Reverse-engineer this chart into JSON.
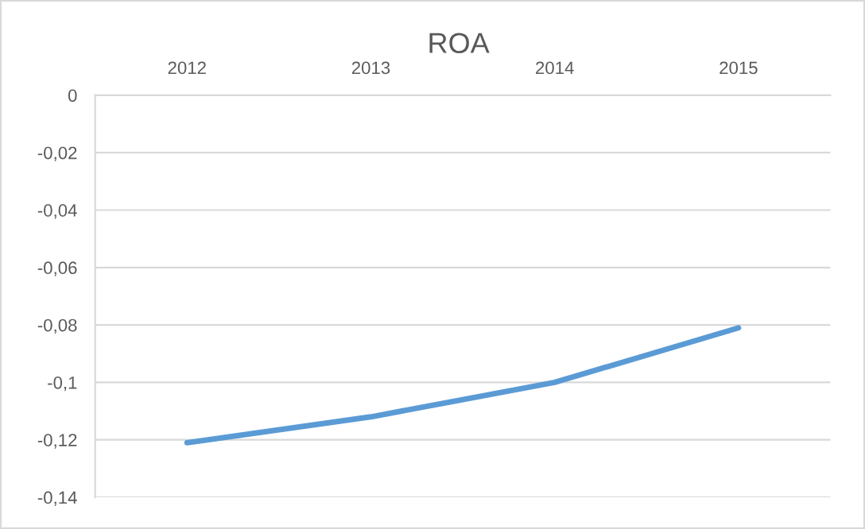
{
  "chart_data": {
    "type": "line",
    "title": "ROA",
    "categories": [
      "2012",
      "2013",
      "2014",
      "2015"
    ],
    "series": [
      {
        "color": "#5b9bd5",
        "values": [
          -0.121,
          -0.112,
          -0.1,
          -0.081
        ]
      }
    ],
    "ylim": [
      -0.14,
      0
    ],
    "yticks": [
      {
        "value": -0.14,
        "label": "-0,14"
      },
      {
        "value": -0.12,
        "label": "-0,12"
      },
      {
        "value": -0.1,
        "label": "-0,1"
      },
      {
        "value": -0.08,
        "label": "-0,08"
      },
      {
        "value": -0.06,
        "label": "-0,06"
      },
      {
        "value": -0.04,
        "label": "-0,04"
      },
      {
        "value": -0.02,
        "label": "-0,02"
      },
      {
        "value": 0,
        "label": "0"
      }
    ],
    "grid": "y",
    "legend": false,
    "marker": "none",
    "line_style": "solid"
  }
}
